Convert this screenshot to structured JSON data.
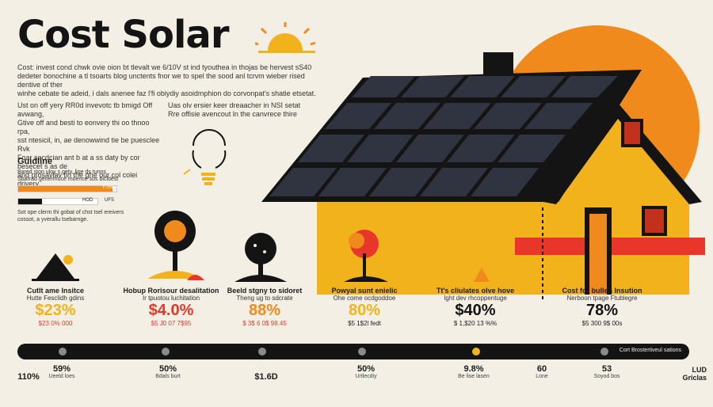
{
  "title": "Cost Solar",
  "intro": [
    "Cost: invest cond chwk ovie oion bt tlevalt we 6/10V st ind tyouthea in thojas be hervest sS40",
    "dedeter bonochine a tl tsoarts blog unctents fnor we to spel the sood anl tcrvm wieber rised dentive of ther",
    "winhe cebate tie adeid, i dals anenee faz l'fi obiydiy asoidmphion do corvonpat's shatie etsetat."
  ],
  "block_left": [
    "Ust on off yery RR0d invevotc tb bmigd Off avwang,",
    "Gtive off and besti to eonvery thi oo thnoo rpa,",
    "sst ntesicil, in, ae denowwind tie be puesclee Rvk",
    "Foar cacdcian ant b at a ss daty by cor besecet s as de",
    "and prosavlav tin the ghe our col colei drivery."
  ],
  "block_right": [
    "Uas olv ersier keer dreaacher in NSI setat",
    "Rre offisie avencout ln the canvrece thire"
  ],
  "guideline": {
    "title": "Guidline",
    "lines": [
      "Bared ston uloy s gety, lige ds tunns",
      "Sbarrad genermoce moence sos bicldest"
    ],
    "bar1_label": "F.0%",
    "bar2_label": "HOD",
    "bar3_label": "UFS",
    "bar1_fill": 0.96,
    "bar2_fill": 0.3,
    "footer": [
      "Sot ope clerm thi gobat of chst tsel ereivers",
      "cossot, a yverallu tsebarnge."
    ]
  },
  "columns": [
    {
      "title": "Cutlt ame Insitce",
      "sub": "Hutte Fesclidh gdins",
      "pct": "$23%",
      "detail": "$23 0% 000"
    },
    {
      "title": "Hobup Rorisour desalitation",
      "sub": "Ir tpuotou luchitation",
      "pct": "$4.0%",
      "detail": "$5 J0 07 7$95"
    },
    {
      "title": "Beeld stgny to sidoret",
      "sub": "Theng ug to sdcrate",
      "pct": "88%",
      "detail": "$ 3$ 6 0$ 98.45"
    },
    {
      "title": "Powyal sunt enielic",
      "sub": "Ohe come ocdgoddoe",
      "pct": "80%",
      "detail": "$5 1$2l fedt"
    },
    {
      "title": "Tt's cliulates olve hove",
      "sub": "Ight dev rhcoppentuge",
      "pct": "$40%",
      "detail": "$ 1,$20 13 %%"
    },
    {
      "title": "Cost for bullen Insution",
      "sub": "Nerboon tpage Ftublegre",
      "pct": "78%",
      "detail": "$5 300 9$ 00s"
    }
  ],
  "timeline_label": "Cort Brostertiveul sations",
  "bottom": [
    {
      "val": "110%",
      "sub": ""
    },
    {
      "val": "59%",
      "sub": "Ueeld loes"
    },
    {
      "val": "50%",
      "sub": "Bdals burt"
    },
    {
      "val": "$1.6D",
      "sub": ""
    },
    {
      "val": "50%",
      "sub": "Urtlecdiy"
    },
    {
      "val": "9.8%",
      "sub": "Be lise lasen"
    },
    {
      "val": "60",
      "sub": "Lone"
    },
    {
      "val": "53",
      "sub": "Soyod bos"
    }
  ],
  "brand": [
    "LUD",
    "Griclas"
  ],
  "colors": {
    "background": "#f4efe4",
    "orange": "#f08a1d",
    "yellow": "#f2b21c",
    "red": "#e8372a",
    "dark": "#141414"
  }
}
